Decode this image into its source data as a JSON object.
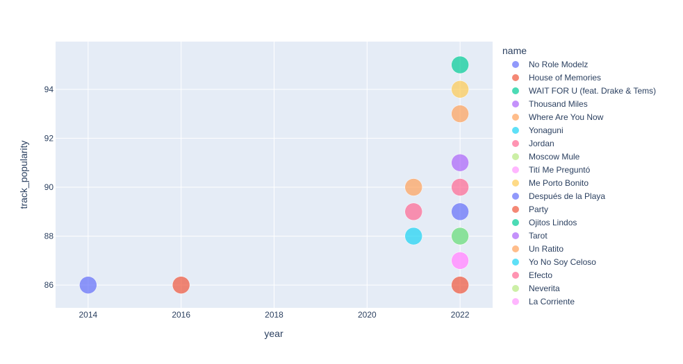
{
  "chart_data": {
    "type": "scatter",
    "xlabel": "year",
    "ylabel": "track_popularity",
    "xlim": [
      2013.3,
      2022.7
    ],
    "ylim": [
      85.07,
      95.95
    ],
    "xticks": [
      2014,
      2016,
      2018,
      2020,
      2022
    ],
    "yticks": [
      86,
      88,
      90,
      92,
      94
    ],
    "grid": true,
    "legend_title": "name",
    "legend_position": "right",
    "plot_background": "#e5ecf6",
    "marker_opacity": 0.7,
    "series": [
      {
        "name": "No Role Modelz",
        "color": "#636efa",
        "points": [
          {
            "x": 2014,
            "y": 86
          }
        ]
      },
      {
        "name": "House of Memories",
        "color": "#EF553B",
        "points": [
          {
            "x": 2016,
            "y": 86
          }
        ]
      },
      {
        "name": "WAIT FOR U (feat. Drake & Tems)",
        "color": "#00cc96",
        "points": [
          {
            "x": 2022,
            "y": 95
          }
        ]
      },
      {
        "name": "Thousand Miles",
        "color": "#ab63fa",
        "points": [
          {
            "x": 2022,
            "y": 88
          }
        ]
      },
      {
        "name": "Where Are You Now",
        "color": "#FFA15A",
        "points": [
          {
            "x": 2021,
            "y": 90
          }
        ]
      },
      {
        "name": "Yonaguni",
        "color": "#19d3f3",
        "points": [
          {
            "x": 2021,
            "y": 88
          }
        ]
      },
      {
        "name": "Jordan",
        "color": "#FF6692",
        "points": [
          {
            "x": 2021,
            "y": 89
          }
        ]
      },
      {
        "name": "Moscow Mule",
        "color": "#B6E880",
        "points": [
          {
            "x": 2022,
            "y": 88
          }
        ]
      },
      {
        "name": "Tití Me Preguntó",
        "color": "#FF97FF",
        "points": [
          {
            "x": 2022,
            "y": 87
          }
        ]
      },
      {
        "name": "Me Porto Bonito",
        "color": "#FECB52",
        "points": [
          {
            "x": 2022,
            "y": 94
          }
        ]
      },
      {
        "name": "Después de la Playa",
        "color": "#636efa",
        "points": [
          {
            "x": 2022,
            "y": 89
          }
        ]
      },
      {
        "name": "Party",
        "color": "#EF553B",
        "points": [
          {
            "x": 2022,
            "y": 86
          }
        ]
      },
      {
        "name": "Ojitos Lindos",
        "color": "#00cc96",
        "points": [
          {
            "x": 2022,
            "y": 88
          }
        ]
      },
      {
        "name": "Tarot",
        "color": "#ab63fa",
        "points": [
          {
            "x": 2022,
            "y": 91
          }
        ]
      },
      {
        "name": "Un Ratito",
        "color": "#FFA15A",
        "points": [
          {
            "x": 2022,
            "y": 93
          }
        ]
      },
      {
        "name": "Yo No Soy Celoso",
        "color": "#19d3f3",
        "points": [
          {
            "x": 2022,
            "y": 88
          }
        ]
      },
      {
        "name": "Efecto",
        "color": "#FF6692",
        "points": [
          {
            "x": 2022,
            "y": 90
          }
        ]
      },
      {
        "name": "Neverita",
        "color": "#B6E880",
        "points": [
          {
            "x": 2022,
            "y": 88
          }
        ]
      },
      {
        "name": "La Corriente",
        "color": "#FF97FF",
        "points": [
          {
            "x": 2022,
            "y": 87
          }
        ]
      }
    ]
  }
}
